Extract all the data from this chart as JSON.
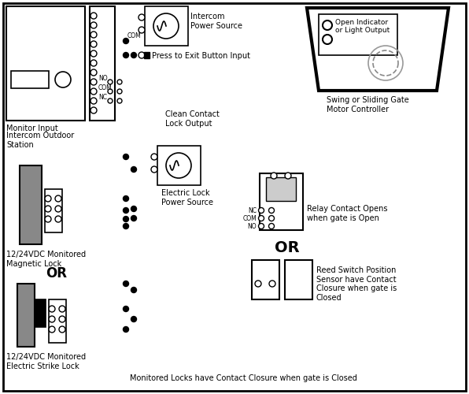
{
  "bg_color": "#ffffff",
  "fig_width": 5.96,
  "fig_height": 5.0,
  "dpi": 100,
  "labels": {
    "monitor_input": "Monitor Input",
    "intercom_outdoor": "Intercom Outdoor\nStation",
    "mag_lock": "12/24VDC Monitored\nMagnetic Lock",
    "strike_lock": "12/24VDC Monitored\nElectric Strike Lock",
    "intercom_ps": "Intercom\nPower Source",
    "press_exit": "Press to Exit Button Input",
    "clean_contact": "Clean Contact\nLock Output",
    "elec_lock_ps": "Electric Lock\nPower Source",
    "relay_contact": "Relay Contact Opens\nwhen gate is Open",
    "or1": "OR",
    "or2": "OR",
    "reed_switch": "Reed Switch Position\nSensor have Contact\nClosure when gate is\nClosed",
    "swing_gate": "Swing or Sliding Gate\nMotor Controller",
    "open_indicator": "Open Indicator\nor Light Output",
    "monitored_locks": "Monitored Locks have Contact Closure when gate is Closed",
    "nc": "NC",
    "com_top": "COM",
    "com_relay": "COM",
    "no_relay": "NO",
    "no_top": "NO",
    "nc_relay": "NC"
  }
}
